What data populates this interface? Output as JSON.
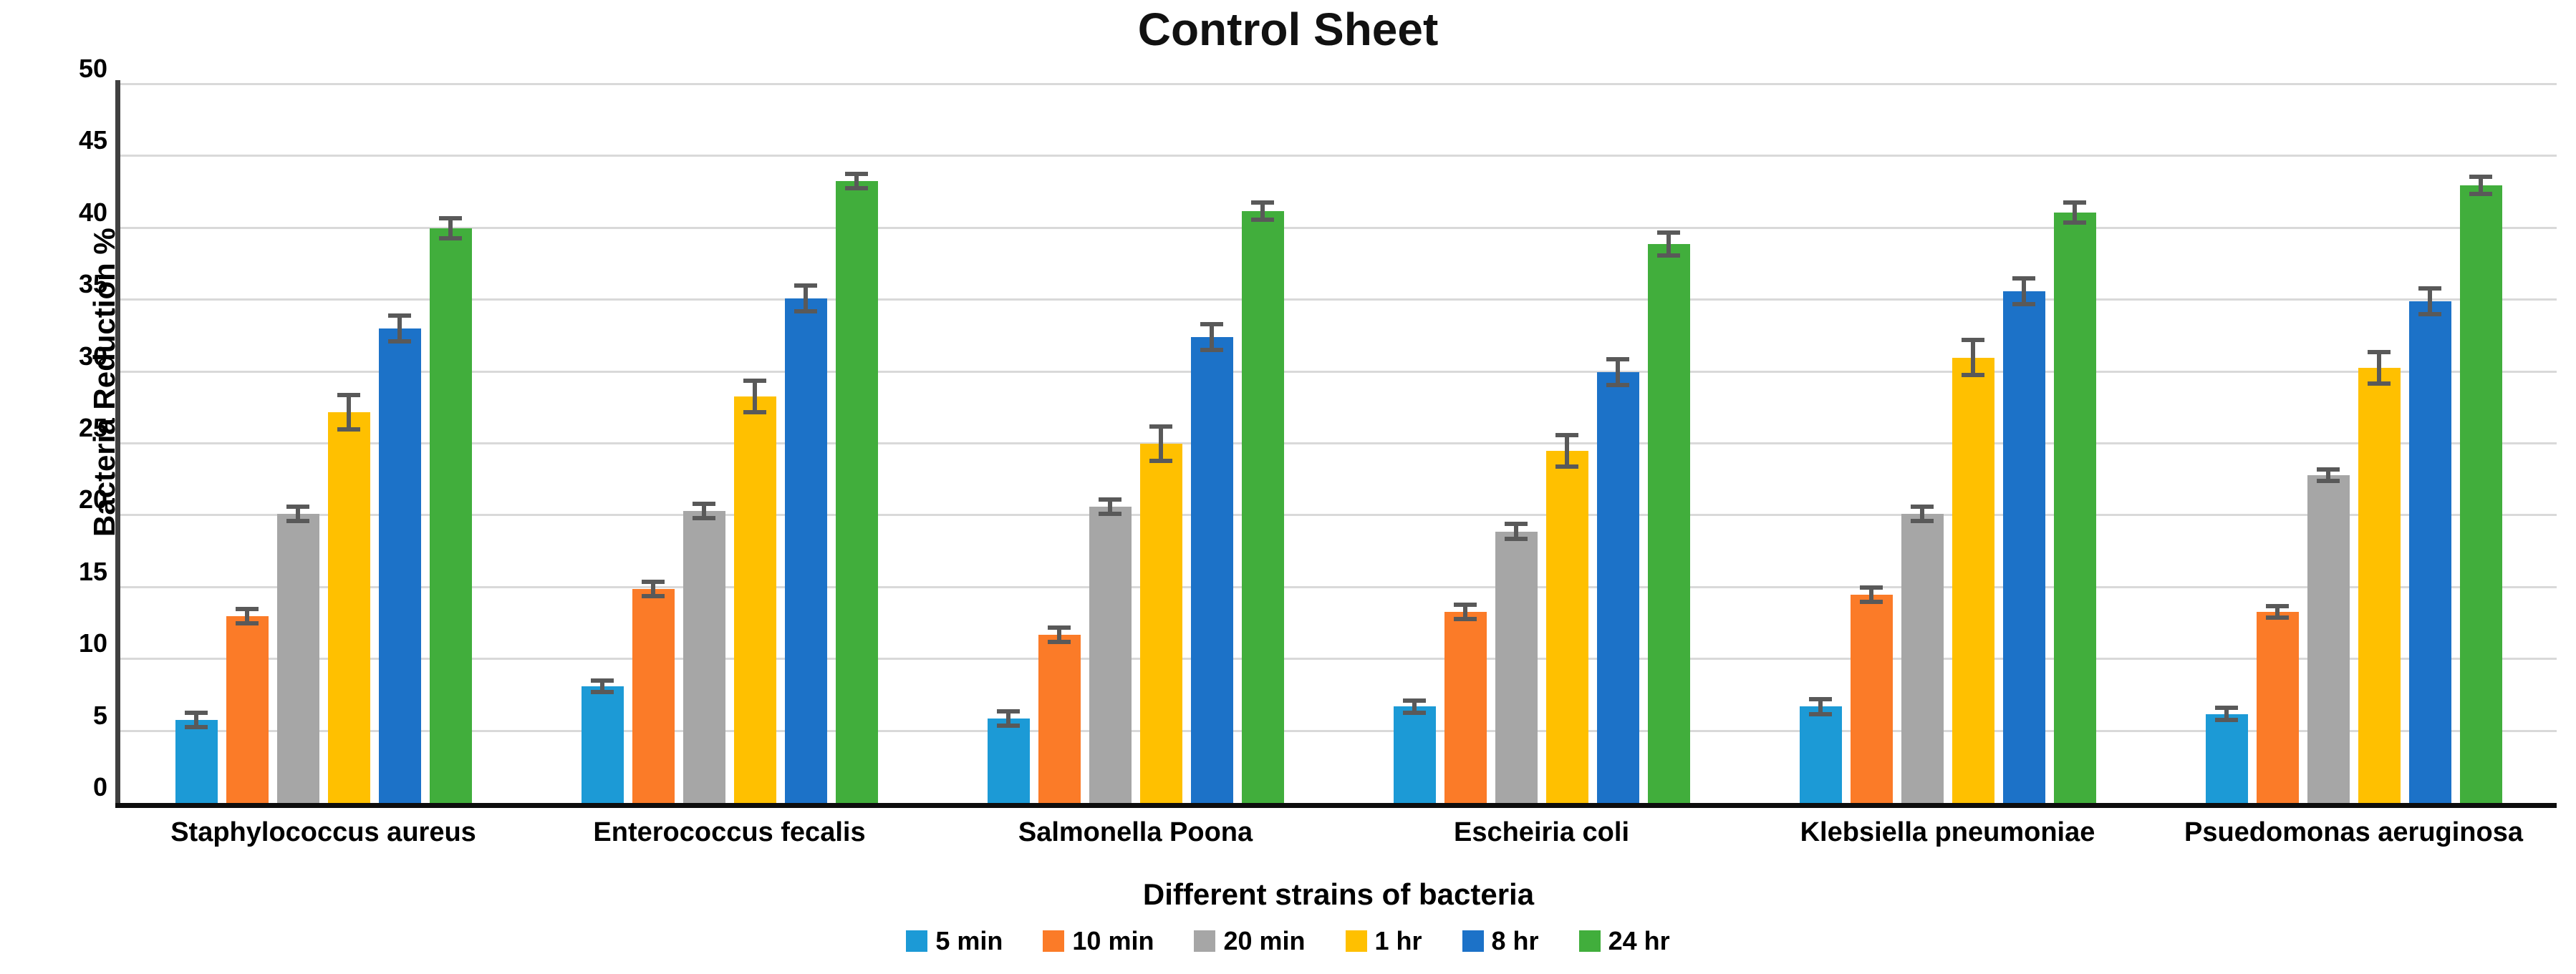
{
  "chart_data": {
    "type": "bar",
    "title": "Control Sheet",
    "xlabel": "Different strains of bacteria",
    "ylabel": "Bacteria Reduction %",
    "ylim": [
      0,
      50
    ],
    "ytick_step": 5,
    "grid": "horizontal-light-gray",
    "legend_position": "bottom-center",
    "error_bars": true,
    "error_bar_color": "#595959",
    "categories": [
      "Staphylococcus aureus",
      "Enterococcus fecalis",
      "Salmonella Poona",
      "Escheiria coli",
      "Klebsiella pneumoniae",
      "Psuedomonas aeruginosa"
    ],
    "series": [
      {
        "name": "5 min",
        "color": "#1C9AD6",
        "values": [
          5.8,
          8.1,
          5.9,
          6.7,
          6.7,
          6.2
        ],
        "errors": [
          0.5,
          0.4,
          0.5,
          0.4,
          0.5,
          0.4
        ]
      },
      {
        "name": "10 min",
        "color": "#FB7B28",
        "values": [
          13.0,
          14.9,
          11.7,
          13.3,
          14.5,
          13.3
        ],
        "errors": [
          0.5,
          0.5,
          0.5,
          0.5,
          0.5,
          0.4
        ]
      },
      {
        "name": "20 min",
        "color": "#A6A6A6",
        "values": [
          20.1,
          20.3,
          20.6,
          18.9,
          20.1,
          22.8
        ],
        "errors": [
          0.5,
          0.5,
          0.5,
          0.5,
          0.5,
          0.4
        ]
      },
      {
        "name": "1 hr",
        "color": "#FFC000",
        "values": [
          27.2,
          28.3,
          25.0,
          24.5,
          31.0,
          30.3
        ],
        "errors": [
          1.2,
          1.1,
          1.2,
          1.1,
          1.2,
          1.1
        ]
      },
      {
        "name": "8 hr",
        "color": "#1C72C8",
        "values": [
          33.0,
          35.1,
          32.4,
          30.0,
          35.6,
          34.9
        ],
        "errors": [
          0.9,
          0.9,
          0.9,
          0.9,
          0.9,
          0.9
        ]
      },
      {
        "name": "24 hr",
        "color": "#41AE3C",
        "values": [
          40.0,
          43.3,
          41.2,
          38.9,
          41.1,
          43.0
        ],
        "errors": [
          0.7,
          0.5,
          0.6,
          0.8,
          0.7,
          0.6
        ]
      }
    ]
  }
}
